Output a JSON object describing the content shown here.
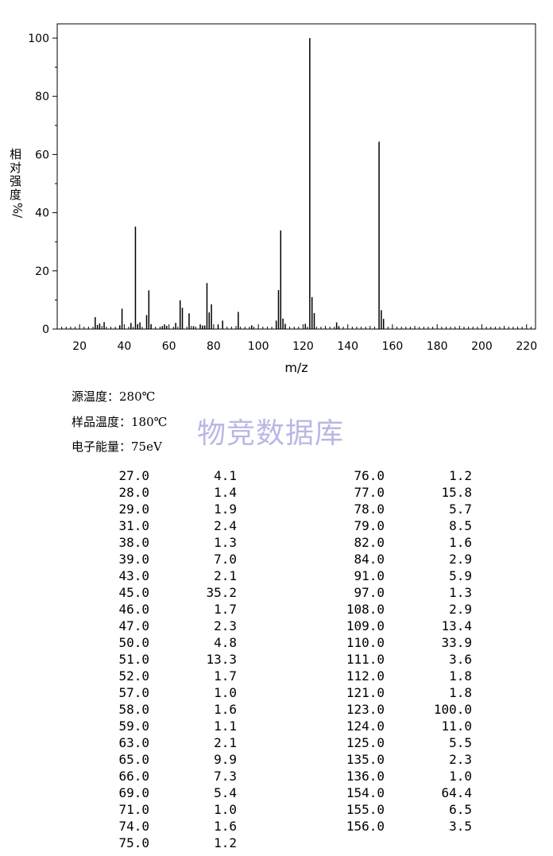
{
  "chart_data": {
    "type": "bar",
    "xlabel": "m/z",
    "ylabel_chars": [
      "相",
      "对",
      "强",
      "度",
      "%/"
    ],
    "xlim": [
      10,
      224
    ],
    "ylim": [
      0,
      100
    ],
    "x_ticks": [
      "20",
      "40",
      "60",
      "80",
      "100",
      "120",
      "140",
      "160",
      "180",
      "200",
      "220"
    ],
    "y_ticks": [
      "0",
      "20",
      "40",
      "60",
      "80",
      "100"
    ],
    "grid": false,
    "peaks": [
      {
        "x": 27.0,
        "y": 4.1
      },
      {
        "x": 28.0,
        "y": 1.4
      },
      {
        "x": 29.0,
        "y": 1.9
      },
      {
        "x": 31.0,
        "y": 2.4
      },
      {
        "x": 38.0,
        "y": 1.3
      },
      {
        "x": 39.0,
        "y": 7.0
      },
      {
        "x": 43.0,
        "y": 2.1
      },
      {
        "x": 45.0,
        "y": 35.2
      },
      {
        "x": 46.0,
        "y": 1.7
      },
      {
        "x": 47.0,
        "y": 2.3
      },
      {
        "x": 50.0,
        "y": 4.8
      },
      {
        "x": 51.0,
        "y": 13.3
      },
      {
        "x": 52.0,
        "y": 1.7
      },
      {
        "x": 57.0,
        "y": 1.0
      },
      {
        "x": 58.0,
        "y": 1.6
      },
      {
        "x": 59.0,
        "y": 1.1
      },
      {
        "x": 63.0,
        "y": 2.1
      },
      {
        "x": 65.0,
        "y": 9.9
      },
      {
        "x": 66.0,
        "y": 7.3
      },
      {
        "x": 69.0,
        "y": 5.4
      },
      {
        "x": 71.0,
        "y": 1.0
      },
      {
        "x": 74.0,
        "y": 1.6
      },
      {
        "x": 75.0,
        "y": 1.2
      },
      {
        "x": 76.0,
        "y": 1.2
      },
      {
        "x": 77.0,
        "y": 15.8
      },
      {
        "x": 78.0,
        "y": 5.7
      },
      {
        "x": 79.0,
        "y": 8.5
      },
      {
        "x": 82.0,
        "y": 1.6
      },
      {
        "x": 84.0,
        "y": 2.9
      },
      {
        "x": 91.0,
        "y": 5.9
      },
      {
        "x": 97.0,
        "y": 1.3
      },
      {
        "x": 108.0,
        "y": 2.9
      },
      {
        "x": 109.0,
        "y": 13.4
      },
      {
        "x": 110.0,
        "y": 33.9
      },
      {
        "x": 111.0,
        "y": 3.6
      },
      {
        "x": 112.0,
        "y": 1.8
      },
      {
        "x": 121.0,
        "y": 1.8
      },
      {
        "x": 123.0,
        "y": 100.0
      },
      {
        "x": 124.0,
        "y": 11.0
      },
      {
        "x": 125.0,
        "y": 5.5
      },
      {
        "x": 135.0,
        "y": 2.3
      },
      {
        "x": 136.0,
        "y": 1.0
      },
      {
        "x": 154.0,
        "y": 64.4
      },
      {
        "x": 155.0,
        "y": 6.5
      },
      {
        "x": 156.0,
        "y": 3.5
      }
    ]
  },
  "conditions": {
    "source_temp": "源温度：280℃",
    "sample_temp": "样品温度：180℃",
    "electron_energy": "电子能量：75eV"
  },
  "watermark": "物竞数据库",
  "table": {
    "left": [
      [
        "27.0",
        "4.1"
      ],
      [
        "28.0",
        "1.4"
      ],
      [
        "29.0",
        "1.9"
      ],
      [
        "31.0",
        "2.4"
      ],
      [
        "38.0",
        "1.3"
      ],
      [
        "39.0",
        "7.0"
      ],
      [
        "43.0",
        "2.1"
      ],
      [
        "45.0",
        "35.2"
      ],
      [
        "46.0",
        "1.7"
      ],
      [
        "47.0",
        "2.3"
      ],
      [
        "50.0",
        "4.8"
      ],
      [
        "51.0",
        "13.3"
      ],
      [
        "52.0",
        "1.7"
      ],
      [
        "57.0",
        "1.0"
      ],
      [
        "58.0",
        "1.6"
      ],
      [
        "59.0",
        "1.1"
      ],
      [
        "63.0",
        "2.1"
      ],
      [
        "65.0",
        "9.9"
      ],
      [
        "66.0",
        "7.3"
      ],
      [
        "69.0",
        "5.4"
      ],
      [
        "71.0",
        "1.0"
      ],
      [
        "74.0",
        "1.6"
      ],
      [
        "75.0",
        "1.2"
      ]
    ],
    "right": [
      [
        "76.0",
        "1.2"
      ],
      [
        "77.0",
        "15.8"
      ],
      [
        "78.0",
        "5.7"
      ],
      [
        "79.0",
        "8.5"
      ],
      [
        "82.0",
        "1.6"
      ],
      [
        "84.0",
        "2.9"
      ],
      [
        "91.0",
        "5.9"
      ],
      [
        "97.0",
        "1.3"
      ],
      [
        "108.0",
        "2.9"
      ],
      [
        "109.0",
        "13.4"
      ],
      [
        "110.0",
        "33.9"
      ],
      [
        "111.0",
        "3.6"
      ],
      [
        "112.0",
        "1.8"
      ],
      [
        "121.0",
        "1.8"
      ],
      [
        "123.0",
        "100.0"
      ],
      [
        "124.0",
        "11.0"
      ],
      [
        "125.0",
        "5.5"
      ],
      [
        "135.0",
        "2.3"
      ],
      [
        "136.0",
        "1.0"
      ],
      [
        "154.0",
        "64.4"
      ],
      [
        "155.0",
        "6.5"
      ],
      [
        "156.0",
        "3.5"
      ]
    ]
  }
}
